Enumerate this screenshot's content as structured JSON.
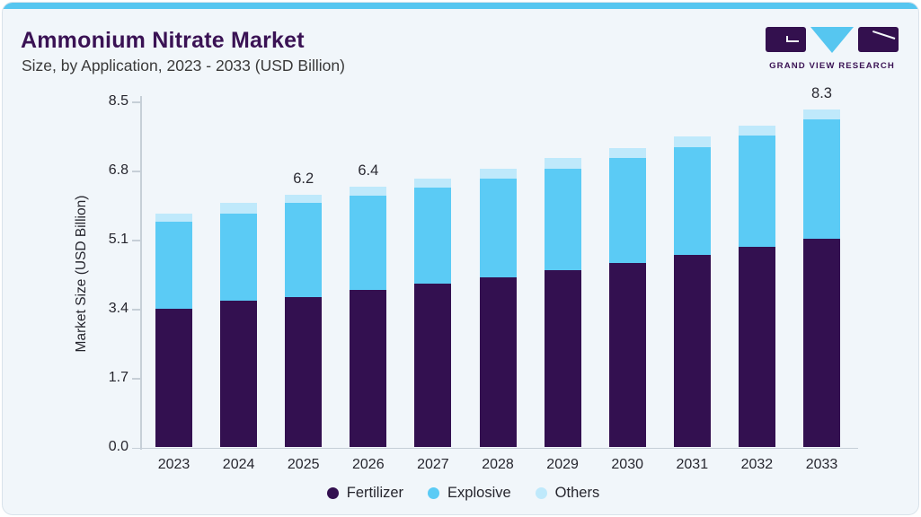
{
  "header": {
    "title": "Ammonium Nitrate Market",
    "subtitle": "Size, by Application, 2023 - 2033 (USD Billion)"
  },
  "logo": {
    "text": "GRAND VIEW RESEARCH"
  },
  "chart_data": {
    "type": "bar",
    "stacked": true,
    "title": "Ammonium Nitrate Market Size, by Application, 2023 - 2033 (USD Billion)",
    "ylabel": "Market Size (USD Billion)",
    "xlabel": "",
    "ylim": [
      0,
      8.5
    ],
    "ytick_labels": [
      "0.0",
      "1.7",
      "3.4",
      "5.1",
      "6.8",
      "8.5"
    ],
    "ytick_values": [
      0,
      1.7,
      3.4,
      5.1,
      6.8,
      8.5
    ],
    "grid": false,
    "legend_position": "bottom",
    "categories": [
      "2023",
      "2024",
      "2025",
      "2026",
      "2027",
      "2028",
      "2029",
      "2030",
      "2031",
      "2032",
      "2033"
    ],
    "series": [
      {
        "name": "Fertilizer",
        "color": "#331050",
        "values": [
          3.4,
          3.6,
          3.7,
          3.88,
          4.02,
          4.18,
          4.35,
          4.53,
          4.73,
          4.92,
          5.12
        ]
      },
      {
        "name": "Explosive",
        "color": "#5bcbf5",
        "values": [
          2.15,
          2.15,
          2.3,
          2.3,
          2.36,
          2.42,
          2.5,
          2.57,
          2.65,
          2.74,
          2.93
        ]
      },
      {
        "name": "Others",
        "color": "#bfe9fb",
        "values": [
          0.2,
          0.25,
          0.2,
          0.22,
          0.22,
          0.25,
          0.25,
          0.25,
          0.25,
          0.25,
          0.25
        ]
      }
    ],
    "totals": [
      5.75,
      6.0,
      6.2,
      6.4,
      6.6,
      6.85,
      7.1,
      7.35,
      7.63,
      7.91,
      8.3
    ],
    "bar_labels": {
      "2025": "6.2",
      "2026": "6.4",
      "2033": "8.3"
    }
  },
  "colors": {
    "card_background": "#f1f6fa",
    "card_border": "#d9e3eb",
    "accent_bar": "#56c6f0",
    "title": "#3a1254",
    "subtitle": "#3a3a3a",
    "axis": "#c6cfd7",
    "tick_text": "#26262e",
    "fertilizer": "#331050",
    "explosive": "#5bcbf5",
    "others": "#bfe9fb"
  }
}
